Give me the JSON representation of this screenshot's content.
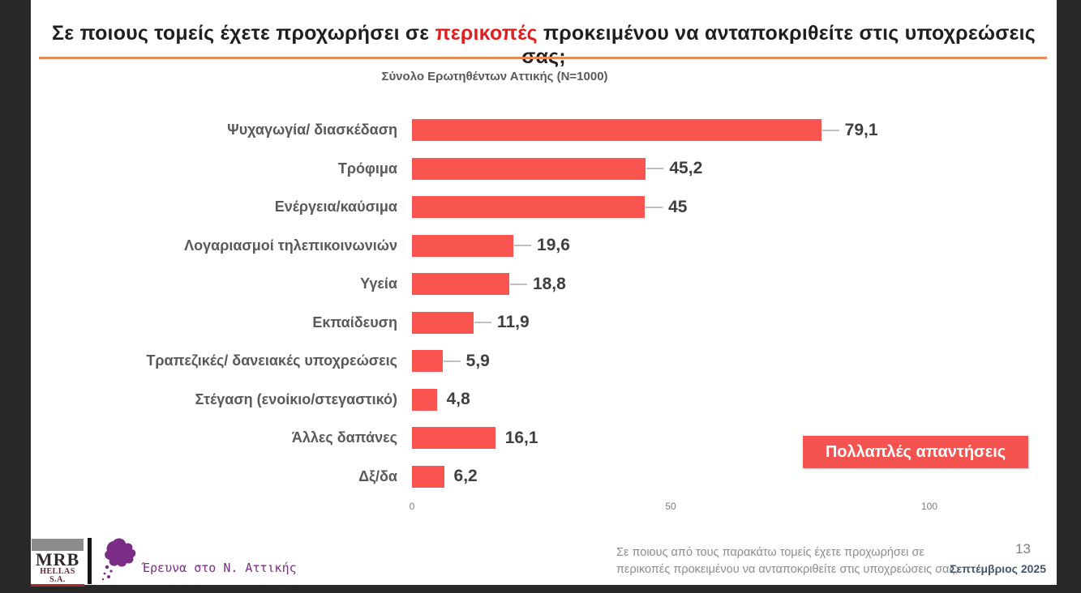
{
  "slide": {
    "title": {
      "pre": "Σε ποιους τομείς έχετε προχωρήσει σε ",
      "highlight": "περικοπές",
      "post": " προκειμένου να ανταποκριθείτε στις υποχρεώσεις σας;"
    },
    "subtitle": "Σύνολο Ερωτηθέντων Αττικής (N=1000)",
    "note_badge": "Πολλαπλές απαντήσεις"
  },
  "chart_data": {
    "type": "bar",
    "orientation": "horizontal",
    "title": "Σύνολο Ερωτηθέντων Αττικής (N=1000)",
    "categories": [
      "Ψυχαγωγία/ διασκέδαση",
      "Τρόφιμα",
      "Ενέργεια/καύσιμα",
      "Λογαριασμοί τηλεπικοινωνιών",
      "Υγεία",
      "Εκπαίδευση",
      "Τραπεζικές/ δανειακές υποχρεώσεις",
      "Στέγαση (ενοίκιο/στεγαστικό)",
      "Άλλες δαπάνες",
      "Δξ/δα"
    ],
    "values": [
      79.1,
      45.2,
      45,
      19.6,
      18.8,
      11.9,
      5.9,
      4.8,
      16.1,
      6.2
    ],
    "value_labels": [
      "79,1",
      "45,2",
      "45",
      "19,6",
      "18,8",
      "11,9",
      "5,9",
      "4,8",
      "16,1",
      "6,2"
    ],
    "leader_lines": [
      true,
      true,
      true,
      true,
      true,
      true,
      true,
      false,
      false,
      false
    ],
    "xlim": [
      0,
      100
    ],
    "x_ticks": [
      0,
      50,
      100
    ],
    "grid": false,
    "legend_position": "none",
    "annotation": "Πολλαπλές απαντήσεις",
    "bar_color": "#F95450"
  },
  "footer": {
    "logo": {
      "mrb": "MRB",
      "hellas": "HELLAS S.A."
    },
    "brand_text": "Έρευνα στο Ν. Αττικής",
    "question_line1": "Σε ποιους από τους παρακάτω τομείς έχετε προχωρήσει σε",
    "question_line2": "περικοπές προκειμένου να ανταποκριθείτε στις υποχρεώσεις σας;",
    "page_number": "13",
    "date": "Σεπτέμβριος 2025"
  },
  "colors": {
    "bar_red": "#F95450",
    "badge_red": "#F4534F",
    "title_red": "#E21D1D",
    "rule_orange": "#E78A57",
    "label_grey": "#595959",
    "value_grey": "#3F3F3F",
    "tick_grey": "#7F7F7F",
    "footer_grey": "#8C8C8C",
    "date_navy": "#44546A",
    "brand_purple": "#7B2C85",
    "page_bg": "#282828"
  }
}
